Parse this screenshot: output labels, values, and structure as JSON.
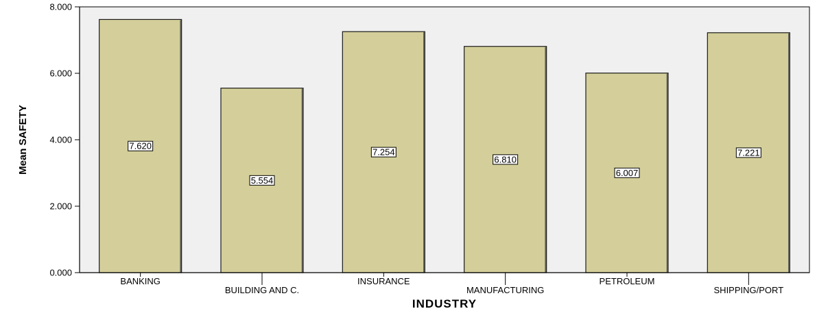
{
  "chart_data": {
    "type": "bar",
    "categories": [
      "BANKING",
      "BUILDING AND C.",
      "INSURANCE",
      "MANUFACTURING",
      "PETROLEUM",
      "SHIPPING/PORT"
    ],
    "values": [
      7.62,
      5.554,
      7.254,
      6.81,
      6.007,
      7.221
    ],
    "data_labels": [
      "7.620",
      "5.554",
      "7.254",
      "6.810",
      "6.007",
      "7.221"
    ],
    "xlabel": "INDUSTRY",
    "ylabel": "Mean SAFETY",
    "ylim": [
      0,
      8
    ],
    "yticks": [
      0,
      2,
      4,
      6,
      8
    ],
    "ytick_labels": [
      "0.000",
      "2.000",
      "4.000",
      "6.000",
      "8.000"
    ],
    "grid": false,
    "colors": {
      "bar_fill": "#d4cf9a",
      "bar_edge": "#1a1a1a",
      "plot_background": "#f0f0f0"
    }
  }
}
